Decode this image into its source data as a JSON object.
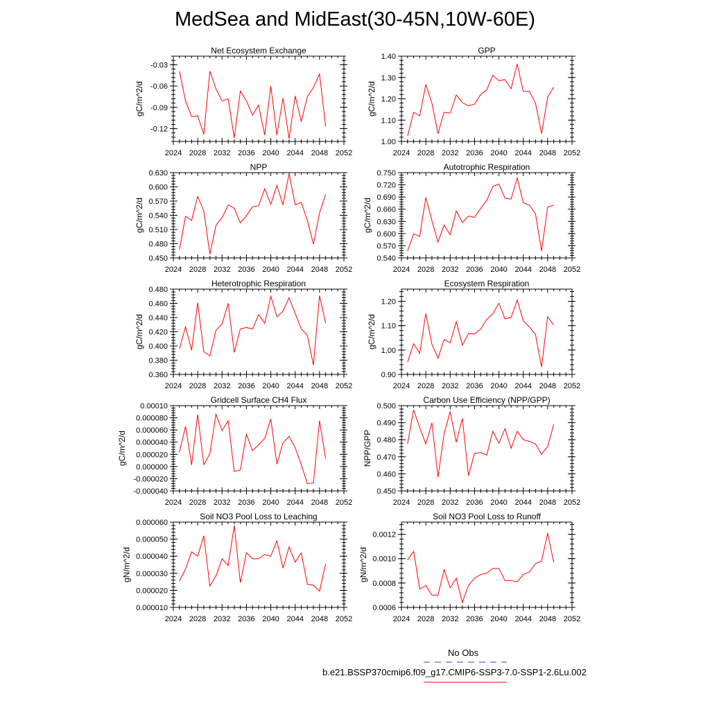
{
  "figure": {
    "title": "MedSea and MidEast(30-45N,10W-60E)"
  },
  "legend": {
    "items": [
      {
        "label": "No Obs",
        "color": "#3c3cd2",
        "dash": true
      },
      {
        "label": "b.e21.BSSP370cmip6.f09_g17.CMIP6-SSP3-7.0-SSP1-2.6Lu.002",
        "color": "#ff0000",
        "dash": false
      }
    ]
  },
  "colors": {
    "series": "#ff0000",
    "axis": "#000000"
  },
  "chart_data": [
    {
      "type": "line",
      "title": "Net Ecosystem Exchange",
      "ylabel": "gC/m^2/d",
      "xlim": [
        2024,
        2052
      ],
      "ylim": [
        -0.138,
        -0.018
      ],
      "xticks": [
        2024,
        2028,
        2032,
        2036,
        2040,
        2044,
        2048,
        2052
      ],
      "yticks": [
        -0.12,
        -0.09,
        -0.06,
        -0.03
      ],
      "ytick_labels": [
        "-0.12",
        "-0.09",
        "-0.06",
        "-0.03"
      ],
      "x": [
        2025,
        2026,
        2027,
        2028,
        2029,
        2030,
        2031,
        2032,
        2033,
        2034,
        2035,
        2036,
        2037,
        2038,
        2039,
        2040,
        2041,
        2042,
        2043,
        2044,
        2045,
        2046,
        2047,
        2048,
        2049
      ],
      "series": [
        {
          "values": [
            -0.039,
            -0.081,
            -0.103,
            -0.102,
            -0.128,
            -0.039,
            -0.064,
            -0.081,
            -0.078,
            -0.133,
            -0.067,
            -0.081,
            -0.101,
            -0.087,
            -0.129,
            -0.06,
            -0.129,
            -0.077,
            -0.134,
            -0.074,
            -0.11,
            -0.075,
            -0.062,
            -0.043,
            -0.117
          ]
        }
      ]
    },
    {
      "type": "line",
      "title": "GPP",
      "ylabel": "gC/m^2/d",
      "xlim": [
        2024,
        2052
      ],
      "ylim": [
        1.0,
        1.4
      ],
      "xticks": [
        2024,
        2028,
        2032,
        2036,
        2040,
        2044,
        2048,
        2052
      ],
      "yticks": [
        1.0,
        1.1,
        1.2,
        1.3,
        1.4
      ],
      "ytick_labels": [
        "1.00",
        "1.10",
        "1.20",
        "1.30",
        "1.40"
      ],
      "x": [
        2025,
        2026,
        2027,
        2028,
        2029,
        2030,
        2031,
        2032,
        2033,
        2034,
        2035,
        2036,
        2037,
        2038,
        2039,
        2040,
        2041,
        2042,
        2043,
        2044,
        2045,
        2046,
        2047,
        2048,
        2049
      ],
      "series": [
        {
          "values": [
            1.025,
            1.137,
            1.12,
            1.268,
            1.18,
            1.037,
            1.137,
            1.133,
            1.218,
            1.182,
            1.167,
            1.175,
            1.22,
            1.242,
            1.31,
            1.285,
            1.29,
            1.247,
            1.363,
            1.235,
            1.235,
            1.18,
            1.037,
            1.208,
            1.255
          ]
        }
      ]
    },
    {
      "type": "line",
      "title": "NPP",
      "ylabel": "gC/m^2/d",
      "xlim": [
        2024,
        2052
      ],
      "ylim": [
        0.45,
        0.63
      ],
      "xticks": [
        2024,
        2028,
        2032,
        2036,
        2040,
        2044,
        2048,
        2052
      ],
      "yticks": [
        0.45,
        0.48,
        0.51,
        0.54,
        0.57,
        0.6,
        0.63
      ],
      "ytick_labels": [
        "0.450",
        "0.480",
        "0.510",
        "0.540",
        "0.570",
        "0.600",
        "0.630"
      ],
      "x": [
        2025,
        2026,
        2027,
        2028,
        2029,
        2030,
        2031,
        2032,
        2033,
        2034,
        2035,
        2036,
        2037,
        2038,
        2039,
        2040,
        2041,
        2042,
        2043,
        2044,
        2045,
        2046,
        2047,
        2048,
        2049
      ],
      "series": [
        {
          "values": [
            0.467,
            0.538,
            0.529,
            0.58,
            0.549,
            0.458,
            0.519,
            0.535,
            0.562,
            0.555,
            0.524,
            0.539,
            0.558,
            0.56,
            0.596,
            0.563,
            0.603,
            0.562,
            0.628,
            0.562,
            0.567,
            0.529,
            0.479,
            0.545,
            0.584
          ]
        }
      ]
    },
    {
      "type": "line",
      "title": "Autotrophic Respiration",
      "ylabel": "gC/m^2/d",
      "xlim": [
        2024,
        2052
      ],
      "ylim": [
        0.54,
        0.75
      ],
      "xticks": [
        2024,
        2028,
        2032,
        2036,
        2040,
        2044,
        2048,
        2052
      ],
      "yticks": [
        0.54,
        0.57,
        0.6,
        0.63,
        0.66,
        0.69,
        0.72,
        0.75
      ],
      "ytick_labels": [
        "0.540",
        "0.570",
        "0.600",
        "0.630",
        "0.660",
        "0.690",
        "0.720",
        "0.750"
      ],
      "x": [
        2025,
        2026,
        2027,
        2028,
        2029,
        2030,
        2031,
        2032,
        2033,
        2034,
        2035,
        2036,
        2037,
        2038,
        2039,
        2040,
        2041,
        2042,
        2043,
        2044,
        2045,
        2046,
        2047,
        2048,
        2049
      ],
      "series": [
        {
          "values": [
            0.557,
            0.599,
            0.593,
            0.689,
            0.632,
            0.579,
            0.621,
            0.597,
            0.656,
            0.627,
            0.643,
            0.64,
            0.662,
            0.682,
            0.716,
            0.722,
            0.687,
            0.685,
            0.737,
            0.676,
            0.67,
            0.649,
            0.557,
            0.665,
            0.67
          ]
        }
      ]
    },
    {
      "type": "line",
      "title": "Heterotrophic Respiration",
      "ylabel": "gC/m^2/d",
      "xlim": [
        2024,
        2052
      ],
      "ylim": [
        0.36,
        0.48
      ],
      "xticks": [
        2024,
        2028,
        2032,
        2036,
        2040,
        2044,
        2048,
        2052
      ],
      "yticks": [
        0.36,
        0.38,
        0.4,
        0.42,
        0.44,
        0.46,
        0.48
      ],
      "ytick_labels": [
        "0.360",
        "0.380",
        "0.400",
        "0.420",
        "0.440",
        "0.460",
        "0.480"
      ],
      "x": [
        2025,
        2026,
        2027,
        2028,
        2029,
        2030,
        2031,
        2032,
        2033,
        2034,
        2035,
        2036,
        2037,
        2038,
        2039,
        2040,
        2041,
        2042,
        2043,
        2044,
        2045,
        2046,
        2047,
        2048,
        2049
      ],
      "series": [
        {
          "values": [
            0.396,
            0.427,
            0.394,
            0.461,
            0.392,
            0.386,
            0.422,
            0.431,
            0.46,
            0.391,
            0.424,
            0.426,
            0.424,
            0.444,
            0.432,
            0.47,
            0.441,
            0.449,
            0.468,
            0.446,
            0.424,
            0.415,
            0.373,
            0.471,
            0.432
          ]
        }
      ]
    },
    {
      "type": "line",
      "title": "Ecosystem Respiration",
      "ylabel": "gC/m^2/d",
      "xlim": [
        2024,
        2052
      ],
      "ylim": [
        0.9,
        1.25
      ],
      "xticks": [
        2024,
        2028,
        2032,
        2036,
        2040,
        2044,
        2048,
        2052
      ],
      "yticks": [
        0.9,
        1.0,
        1.1,
        1.2
      ],
      "ytick_labels": [
        "0.90",
        "1.00",
        "1.10",
        "1.20"
      ],
      "x": [
        2025,
        2026,
        2027,
        2028,
        2029,
        2030,
        2031,
        2032,
        2033,
        2034,
        2035,
        2036,
        2037,
        2038,
        2039,
        2040,
        2041,
        2042,
        2043,
        2044,
        2045,
        2046,
        2047,
        2048,
        2049
      ],
      "series": [
        {
          "values": [
            0.95,
            1.026,
            0.987,
            1.15,
            1.024,
            0.967,
            1.043,
            1.03,
            1.117,
            1.02,
            1.067,
            1.066,
            1.086,
            1.126,
            1.149,
            1.192,
            1.128,
            1.134,
            1.205,
            1.12,
            1.094,
            1.064,
            0.93,
            1.137,
            1.102
          ]
        }
      ]
    },
    {
      "type": "line",
      "title": "Gridcell Surface CH4 Flux",
      "ylabel": "gC/m^2/d",
      "xlim": [
        2024,
        2052
      ],
      "ylim": [
        -4e-05,
        0.0001
      ],
      "xticks": [
        2024,
        2028,
        2032,
        2036,
        2040,
        2044,
        2048,
        2052
      ],
      "yticks": [
        -4e-05,
        -2e-05,
        0,
        2e-05,
        4e-05,
        6e-05,
        8e-05,
        0.0001
      ],
      "ytick_labels": [
        "-0.000040",
        "-0.000020",
        "0.000000",
        "0.000020",
        "0.000040",
        "0.000060",
        "0.000080",
        "0.00010"
      ],
      "x": [
        2025,
        2026,
        2027,
        2028,
        2029,
        2030,
        2031,
        2032,
        2033,
        2034,
        2035,
        2036,
        2037,
        2038,
        2039,
        2040,
        2041,
        2042,
        2043,
        2044,
        2045,
        2046,
        2047,
        2048,
        2049
      ],
      "series": [
        {
          "values": [
            2.35e-05,
            6.6e-05,
            2.5e-06,
            8.55e-05,
            3e-06,
            2.1e-05,
            8.6e-05,
            5.9e-05,
            7.5e-05,
            -8e-06,
            -5.5e-06,
            5.3e-05,
            2.6e-05,
            3.6e-05,
            4.6e-05,
            7.8e-05,
            4e-06,
            3.9e-05,
            4.95e-05,
            3.1e-05,
            3e-06,
            -2.8e-05,
            -2.7e-05,
            7.55e-05,
            1.3e-05
          ]
        }
      ]
    },
    {
      "type": "line",
      "title": "Carbon Use Efficiency (NPP/GPP)",
      "ylabel": "NPP/GPP",
      "xlim": [
        2024,
        2052
      ],
      "ylim": [
        0.45,
        0.5
      ],
      "xticks": [
        2024,
        2028,
        2032,
        2036,
        2040,
        2044,
        2048,
        2052
      ],
      "yticks": [
        0.45,
        0.46,
        0.47,
        0.48,
        0.49,
        0.5
      ],
      "ytick_labels": [
        "0.450",
        "0.460",
        "0.470",
        "0.480",
        "0.490",
        "0.500"
      ],
      "x": [
        2025,
        2026,
        2027,
        2028,
        2029,
        2030,
        2031,
        2032,
        2033,
        2034,
        2035,
        2036,
        2037,
        2038,
        2039,
        2040,
        2041,
        2042,
        2043,
        2044,
        2045,
        2046,
        2047,
        2048,
        2049
      ],
      "series": [
        {
          "values": [
            0.4775,
            0.4975,
            0.487,
            0.4775,
            0.49,
            0.458,
            0.4835,
            0.4965,
            0.4785,
            0.4925,
            0.459,
            0.472,
            0.4725,
            0.471,
            0.485,
            0.478,
            0.4865,
            0.475,
            0.485,
            0.48,
            0.479,
            0.4775,
            0.4715,
            0.476,
            0.489
          ]
        }
      ]
    },
    {
      "type": "line",
      "title": "Soil NO3 Pool Loss to Leaching",
      "ylabel": "gN/m^2/d",
      "xlim": [
        2024,
        2052
      ],
      "ylim": [
        1e-05,
        6e-05
      ],
      "xticks": [
        2024,
        2028,
        2032,
        2036,
        2040,
        2044,
        2048,
        2052
      ],
      "yticks": [
        1e-05,
        2e-05,
        3e-05,
        4e-05,
        5e-05,
        6e-05
      ],
      "ytick_labels": [
        "0.000010",
        "0.000020",
        "0.000030",
        "0.000040",
        "0.000050",
        "0.000060"
      ],
      "x": [
        2025,
        2026,
        2027,
        2028,
        2029,
        2030,
        2031,
        2032,
        2033,
        2034,
        2035,
        2036,
        2037,
        2038,
        2039,
        2040,
        2041,
        2042,
        2043,
        2044,
        2045,
        2046,
        2047,
        2048,
        2049
      ],
      "series": [
        {
          "values": [
            2.55e-05,
            3.25e-05,
            4.25e-05,
            4e-05,
            5.2e-05,
            2.25e-05,
            2.85e-05,
            3.85e-05,
            3.45e-05,
            5.8e-05,
            2.45e-05,
            4.2e-05,
            3.85e-05,
            3.85e-05,
            4.1e-05,
            4e-05,
            4.9e-05,
            3.3e-05,
            4.55e-05,
            3.65e-05,
            4.2e-05,
            2.35e-05,
            2.3e-05,
            1.95e-05,
            3.55e-05
          ]
        }
      ]
    },
    {
      "type": "line",
      "title": "Soil NO3 Pool Loss to Runoff",
      "ylabel": "gN/m^2/d",
      "xlim": [
        2024,
        2052
      ],
      "ylim": [
        0.0006,
        0.0013
      ],
      "xticks": [
        2024,
        2028,
        2032,
        2036,
        2040,
        2044,
        2048,
        2052
      ],
      "yticks": [
        0.0006,
        0.0008,
        0.001,
        0.0012
      ],
      "ytick_labels": [
        "0.0006",
        "0.0008",
        "0.0010",
        "0.0012"
      ],
      "x": [
        2025,
        2026,
        2027,
        2028,
        2029,
        2030,
        2031,
        2032,
        2033,
        2034,
        2035,
        2036,
        2037,
        2038,
        2039,
        2040,
        2041,
        2042,
        2043,
        2044,
        2045,
        2046,
        2047,
        2048,
        2049
      ],
      "series": [
        {
          "values": [
            0.00099,
            0.00106,
            0.00075,
            0.00078,
            0.0007,
            0.0007,
            0.00091,
            0.00076,
            0.00084,
            0.00064,
            0.00078,
            0.00084,
            0.00087,
            0.00088,
            0.00092,
            0.00092,
            0.00082,
            0.00082,
            0.00081,
            0.00087,
            0.00089,
            0.00096,
            0.00098,
            0.00121,
            0.00097
          ]
        }
      ]
    }
  ]
}
